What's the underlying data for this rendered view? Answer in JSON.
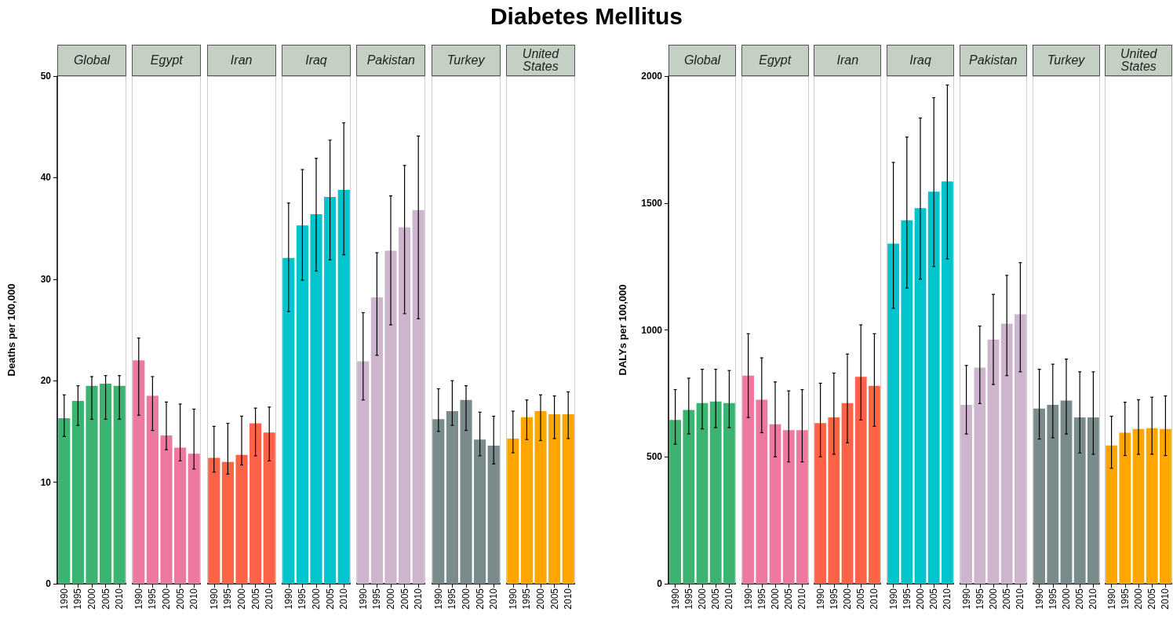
{
  "chart_data": [
    {
      "type": "bar",
      "title": "Global",
      "annotations": [
        "Diabetes Mellitus"
      ],
      "ylabel": "Deaths per 100,000",
      "categories": [
        "1990",
        "1995",
        "2000",
        "2005",
        "2010"
      ],
      "values": [
        16.3,
        18.0,
        19.5,
        19.7,
        19.5
      ],
      "errors": [
        [
          14.5,
          18.6
        ],
        [
          15.6,
          19.5
        ],
        [
          16.2,
          20.4
        ],
        [
          16.2,
          20.5
        ],
        [
          16.2,
          20.5
        ]
      ],
      "color": "#3cb371",
      "ylim": [
        0,
        50
      ],
      "yticks": [
        0,
        10,
        20,
        30,
        40,
        50
      ]
    },
    {
      "type": "bar",
      "title": "Egypt",
      "categories": [
        "1990",
        "1995",
        "2000",
        "2005",
        "2010"
      ],
      "values": [
        22.0,
        18.5,
        14.6,
        13.4,
        12.8
      ],
      "errors": [
        [
          16.6,
          24.2
        ],
        [
          15.1,
          20.4
        ],
        [
          13.2,
          17.9
        ],
        [
          12.1,
          17.7
        ],
        [
          11.3,
          17.2
        ]
      ],
      "color": "#ee799f",
      "ylim": [
        0,
        50
      ],
      "yticks": [
        0,
        10,
        20,
        30,
        40,
        50
      ],
      "tick_labels": "x"
    },
    {
      "type": "bar",
      "title": "Iran",
      "categories": [
        "1990",
        "1995",
        "2000",
        "2005",
        "2010"
      ],
      "values": [
        12.4,
        12.0,
        12.7,
        15.8,
        14.9
      ],
      "errors": [
        [
          11.0,
          15.5
        ],
        [
          10.8,
          15.8
        ],
        [
          11.7,
          16.5
        ],
        [
          12.6,
          17.3
        ],
        [
          12.1,
          17.4
        ]
      ],
      "color": "#ff6347",
      "ylim": [
        0,
        50
      ],
      "yticks": [
        0,
        10,
        20,
        30,
        40,
        50
      ],
      "tick_labels": "x"
    },
    {
      "type": "bar",
      "title": "Iraq",
      "categories": [
        "1990",
        "1995",
        "2000",
        "2005",
        "2010"
      ],
      "values": [
        32.1,
        35.3,
        36.4,
        38.1,
        38.8
      ],
      "errors": [
        [
          26.8,
          37.5
        ],
        [
          29.9,
          40.8
        ],
        [
          30.8,
          41.9
        ],
        [
          31.9,
          43.7
        ],
        [
          32.4,
          45.4
        ]
      ],
      "color": "#00c5cd",
      "ylim": [
        0,
        50
      ],
      "yticks": [
        0,
        10,
        20,
        30,
        40,
        50
      ],
      "tick_labels": "x"
    },
    {
      "type": "bar",
      "title": "Pakistan",
      "categories": [
        "1990",
        "1995",
        "2000",
        "2005",
        "2010"
      ],
      "values": [
        21.9,
        28.2,
        32.8,
        35.1,
        36.8
      ],
      "errors": [
        [
          18.1,
          26.7
        ],
        [
          22.5,
          32.6
        ],
        [
          25.5,
          38.2
        ],
        [
          26.6,
          41.2
        ],
        [
          26.1,
          44.1
        ]
      ],
      "color": "#cdb5cd",
      "ylim": [
        0,
        50
      ],
      "yticks": [
        0,
        10,
        20,
        30,
        40,
        50
      ],
      "tick_labels": "x"
    },
    {
      "type": "bar",
      "title": "Turkey",
      "categories": [
        "1990",
        "1995",
        "2000",
        "2005",
        "2010"
      ],
      "values": [
        16.2,
        17.0,
        18.1,
        14.2,
        13.6
      ],
      "errors": [
        [
          15.0,
          19.2
        ],
        [
          15.6,
          20.0
        ],
        [
          15.1,
          19.5
        ],
        [
          12.6,
          16.9
        ],
        [
          11.8,
          16.5
        ]
      ],
      "color": "#7a8b8b",
      "ylim": [
        0,
        50
      ],
      "yticks": [
        0,
        10,
        20,
        30,
        40,
        50
      ],
      "tick_labels": "x"
    },
    {
      "type": "bar",
      "title": "United States",
      "categories": [
        "1990",
        "1995",
        "2000",
        "2005",
        "2010"
      ],
      "values": [
        14.3,
        16.4,
        17.0,
        16.7,
        16.7
      ],
      "errors": [
        [
          12.9,
          17.0
        ],
        [
          14.2,
          18.1
        ],
        [
          14.1,
          18.6
        ],
        [
          14.3,
          18.5
        ],
        [
          14.3,
          18.9
        ]
      ],
      "color": "#ffa500",
      "ylim": [
        0,
        50
      ],
      "yticks": [
        0,
        10,
        20,
        30,
        40,
        50
      ],
      "tick_labels": "x"
    },
    {
      "type": "bar",
      "title": "Global",
      "ylabel": "DALYs per 100,000",
      "categories": [
        "1990",
        "1995",
        "2000",
        "2005",
        "2010"
      ],
      "values": [
        645,
        685,
        712,
        718,
        712
      ],
      "errors": [
        [
          550,
          765
        ],
        [
          590,
          810
        ],
        [
          610,
          845
        ],
        [
          615,
          845
        ],
        [
          615,
          840
        ]
      ],
      "color": "#3cb371",
      "ylim": [
        0,
        2000
      ],
      "yticks": [
        0,
        500,
        1000,
        1500,
        2000
      ]
    },
    {
      "type": "bar",
      "title": "Egypt",
      "categories": [
        "1990",
        "1995",
        "2000",
        "2005",
        "2010"
      ],
      "values": [
        820,
        725,
        628,
        605,
        605
      ],
      "errors": [
        [
          655,
          985
        ],
        [
          595,
          890
        ],
        [
          500,
          795
        ],
        [
          480,
          760
        ],
        [
          480,
          765
        ]
      ],
      "color": "#ee799f",
      "ylim": [
        0,
        2000
      ],
      "yticks": [
        0,
        500,
        1000,
        1500,
        2000
      ],
      "tick_labels": "x"
    },
    {
      "type": "bar",
      "title": "Iran",
      "categories": [
        "1990",
        "1995",
        "2000",
        "2005",
        "2010"
      ],
      "values": [
        633,
        655,
        712,
        815,
        780
      ],
      "errors": [
        [
          500,
          790
        ],
        [
          510,
          830
        ],
        [
          555,
          905
        ],
        [
          645,
          1020
        ],
        [
          620,
          985
        ]
      ],
      "color": "#ff6347",
      "ylim": [
        0,
        2000
      ],
      "yticks": [
        0,
        500,
        1000,
        1500,
        2000
      ],
      "tick_labels": "x"
    },
    {
      "type": "bar",
      "title": "Iraq",
      "categories": [
        "1990",
        "1995",
        "2000",
        "2005",
        "2010"
      ],
      "values": [
        1340,
        1432,
        1480,
        1545,
        1585
      ],
      "errors": [
        [
          1085,
          1660
        ],
        [
          1165,
          1760
        ],
        [
          1200,
          1835
        ],
        [
          1250,
          1915
        ],
        [
          1280,
          1965
        ]
      ],
      "color": "#00c5cd",
      "ylim": [
        0,
        2000
      ],
      "yticks": [
        0,
        500,
        1000,
        1500,
        2000
      ],
      "tick_labels": "x"
    },
    {
      "type": "bar",
      "title": "Pakistan",
      "categories": [
        "1990",
        "1995",
        "2000",
        "2005",
        "2010"
      ],
      "values": [
        705,
        852,
        962,
        1025,
        1062
      ],
      "errors": [
        [
          590,
          860
        ],
        [
          710,
          1015
        ],
        [
          785,
          1140
        ],
        [
          820,
          1215
        ],
        [
          835,
          1265
        ]
      ],
      "color": "#cdb5cd",
      "ylim": [
        0,
        2000
      ],
      "yticks": [
        0,
        500,
        1000,
        1500,
        2000
      ],
      "tick_labels": "x"
    },
    {
      "type": "bar",
      "title": "Turkey",
      "categories": [
        "1990",
        "1995",
        "2000",
        "2005",
        "2010"
      ],
      "values": [
        690,
        705,
        722,
        655,
        655
      ],
      "errors": [
        [
          570,
          845
        ],
        [
          575,
          865
        ],
        [
          590,
          885
        ],
        [
          515,
          835
        ],
        [
          510,
          835
        ]
      ],
      "color": "#7a8b8b",
      "ylim": [
        0,
        2000
      ],
      "yticks": [
        0,
        500,
        1000,
        1500,
        2000
      ],
      "tick_labels": "x"
    },
    {
      "type": "bar",
      "title": "United States",
      "categories": [
        "1990",
        "1995",
        "2000",
        "2005",
        "2010"
      ],
      "values": [
        545,
        595,
        610,
        613,
        610
      ],
      "errors": [
        [
          455,
          660
        ],
        [
          505,
          715
        ],
        [
          510,
          725
        ],
        [
          510,
          735
        ],
        [
          505,
          740
        ]
      ],
      "color": "#ffa500",
      "ylim": [
        0,
        2000
      ],
      "yticks": [
        0,
        500,
        1000,
        1500,
        2000
      ],
      "tick_labels": "x"
    }
  ]
}
